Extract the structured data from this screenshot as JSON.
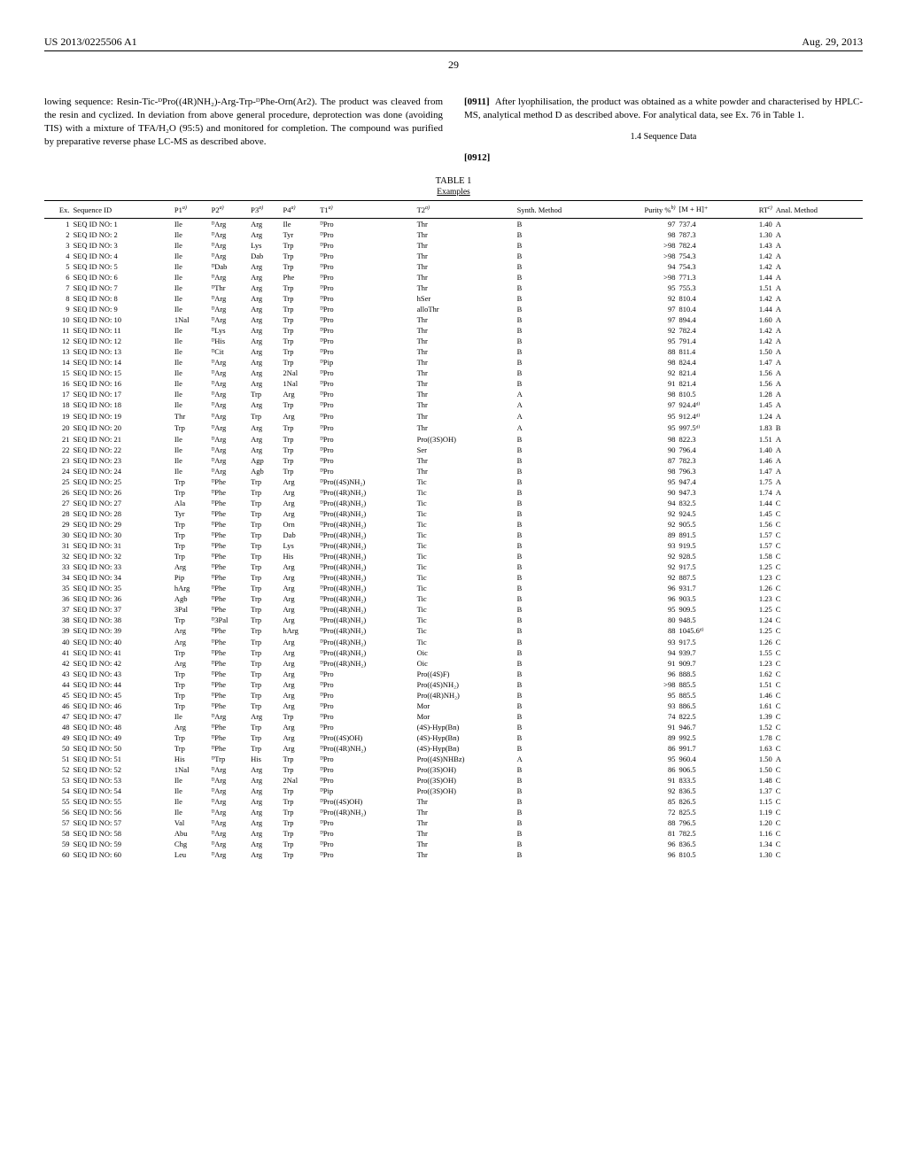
{
  "header": {
    "left": "US 2013/0225506 A1",
    "right": "Aug. 29, 2013"
  },
  "page_number": "29",
  "left_column": {
    "para": "lowing sequence: Resin-Tic-ᴰPro((4R)NH₂)-Arg-Trp-ᴰPhe-Orn(Ar2). The product was cleaved from the resin and cyclized. In deviation from above general procedure, deprotection was done (avoiding TIS) with a mixture of TFA/H₂O (95:5) and monitored for completion. The compound was purified by preparative reverse phase LC-MS as described above."
  },
  "right_column": {
    "para_num": "[0911]",
    "para": "After lyophilisation, the product was obtained as a white powder and characterised by HPLC-MS, analytical method D as described above. For analytical data, see Ex. 76 in Table 1.",
    "subhead": "1.4 Sequence Data",
    "para_num2": "[0912]"
  },
  "table": {
    "label": "TABLE 1",
    "examples_label": "Examples",
    "columns": [
      "Ex.",
      "Sequence ID",
      "P1",
      "P2",
      "P3",
      "P4",
      "T1",
      "T2",
      "Synth. Method",
      "Purity %",
      "[M + H]⁺",
      "RT",
      "Anal. Method"
    ],
    "col_sup": [
      "",
      "",
      "a)",
      "a)",
      "a)",
      "a)",
      "a)",
      "a)",
      "",
      "b)",
      "",
      "c)",
      ""
    ],
    "rows": [
      [
        "1",
        "SEQ ID NO: 1",
        "Ile",
        "ᴰArg",
        "Arg",
        "Ile",
        "ᴰPro",
        "Thr",
        "B",
        "97",
        "737.4",
        "1.40",
        "A"
      ],
      [
        "2",
        "SEQ ID NO: 2",
        "Ile",
        "ᴰArg",
        "Arg",
        "Tyr",
        "ᴰPro",
        "Thr",
        "B",
        "98",
        "787.3",
        "1.30",
        "A"
      ],
      [
        "3",
        "SEQ ID NO: 3",
        "Ile",
        "ᴰArg",
        "Lys",
        "Trp",
        "ᴰPro",
        "Thr",
        "B",
        ">98",
        "782.4",
        "1.43",
        "A"
      ],
      [
        "4",
        "SEQ ID NO: 4",
        "Ile",
        "ᴰArg",
        "Dab",
        "Trp",
        "ᴰPro",
        "Thr",
        "B",
        ">98",
        "754.3",
        "1.42",
        "A"
      ],
      [
        "5",
        "SEQ ID NO: 5",
        "Ile",
        "ᴰDab",
        "Arg",
        "Trp",
        "ᴰPro",
        "Thr",
        "B",
        "94",
        "754.3",
        "1.42",
        "A"
      ],
      [
        "6",
        "SEQ ID NO: 6",
        "Ile",
        "ᴰArg",
        "Arg",
        "Phe",
        "ᴰPro",
        "Thr",
        "B",
        ">98",
        "771.3",
        "1.44",
        "A"
      ],
      [
        "7",
        "SEQ ID NO: 7",
        "Ile",
        "ᴰThr",
        "Arg",
        "Trp",
        "ᴰPro",
        "Thr",
        "B",
        "95",
        "755.3",
        "1.51",
        "A"
      ],
      [
        "8",
        "SEQ ID NO: 8",
        "Ile",
        "ᴰArg",
        "Arg",
        "Trp",
        "ᴰPro",
        "hSer",
        "B",
        "92",
        "810.4",
        "1.42",
        "A"
      ],
      [
        "9",
        "SEQ ID NO: 9",
        "Ile",
        "ᴰArg",
        "Arg",
        "Trp",
        "ᴰPro",
        "alloThr",
        "B",
        "97",
        "810.4",
        "1.44",
        "A"
      ],
      [
        "10",
        "SEQ ID NO: 10",
        "1Nal",
        "ᴰArg",
        "Arg",
        "Trp",
        "ᴰPro",
        "Thr",
        "B",
        "97",
        "894.4",
        "1.60",
        "A"
      ],
      [
        "11",
        "SEQ ID NO: 11",
        "Ile",
        "ᴰLys",
        "Arg",
        "Trp",
        "ᴰPro",
        "Thr",
        "B",
        "92",
        "782.4",
        "1.42",
        "A"
      ],
      [
        "12",
        "SEQ ID NO: 12",
        "Ile",
        "ᴰHis",
        "Arg",
        "Trp",
        "ᴰPro",
        "Thr",
        "B",
        "95",
        "791.4",
        "1.42",
        "A"
      ],
      [
        "13",
        "SEQ ID NO: 13",
        "Ile",
        "ᴰCit",
        "Arg",
        "Trp",
        "ᴰPro",
        "Thr",
        "B",
        "88",
        "811.4",
        "1.50",
        "A"
      ],
      [
        "14",
        "SEQ ID NO: 14",
        "Ile",
        "ᴰArg",
        "Arg",
        "Trp",
        "ᴰPip",
        "Thr",
        "B",
        "98",
        "824.4",
        "1.47",
        "A"
      ],
      [
        "15",
        "SEQ ID NO: 15",
        "Ile",
        "ᴰArg",
        "Arg",
        "2Nal",
        "ᴰPro",
        "Thr",
        "B",
        "92",
        "821.4",
        "1.56",
        "A"
      ],
      [
        "16",
        "SEQ ID NO: 16",
        "Ile",
        "ᴰArg",
        "Arg",
        "1Nal",
        "ᴰPro",
        "Thr",
        "B",
        "91",
        "821.4",
        "1.56",
        "A"
      ],
      [
        "17",
        "SEQ ID NO: 17",
        "Ile",
        "ᴰArg",
        "Trp",
        "Arg",
        "ᴰPro",
        "Thr",
        "A",
        "98",
        "810.5",
        "1.28",
        "A"
      ],
      [
        "18",
        "SEQ ID NO: 18",
        "Ile",
        "ᴰArg",
        "Arg",
        "Trp",
        "ᴰPro",
        "Thr",
        "A",
        "97",
        "924.4ᵈ⁾",
        "1.45",
        "A"
      ],
      [
        "19",
        "SEQ ID NO: 19",
        "Thr",
        "ᴰArg",
        "Trp",
        "Arg",
        "ᴰPro",
        "Thr",
        "A",
        "95",
        "912.4ᵈ⁾",
        "1.24",
        "A"
      ],
      [
        "20",
        "SEQ ID NO: 20",
        "Trp",
        "ᴰArg",
        "Arg",
        "Trp",
        "ᴰPro",
        "Thr",
        "A",
        "95",
        "997.5ᵈ⁾",
        "1.83",
        "B"
      ],
      [
        "21",
        "SEQ ID NO: 21",
        "Ile",
        "ᴰArg",
        "Arg",
        "Trp",
        "ᴰPro",
        "Pro((3S)OH)",
        "B",
        "98",
        "822.3",
        "1.51",
        "A"
      ],
      [
        "22",
        "SEQ ID NO: 22",
        "Ile",
        "ᴰArg",
        "Arg",
        "Trp",
        "ᴰPro",
        "Ser",
        "B",
        "90",
        "796.4",
        "1.40",
        "A"
      ],
      [
        "23",
        "SEQ ID NO: 23",
        "Ile",
        "ᴰArg",
        "Agp",
        "Trp",
        "ᴰPro",
        "Thr",
        "B",
        "87",
        "782.3",
        "1.46",
        "A"
      ],
      [
        "24",
        "SEQ ID NO: 24",
        "Ile",
        "ᴰArg",
        "Agb",
        "Trp",
        "ᴰPro",
        "Thr",
        "B",
        "98",
        "796.3",
        "1.47",
        "A"
      ],
      [
        "25",
        "SEQ ID NO: 25",
        "Trp",
        "ᴰPhe",
        "Trp",
        "Arg",
        "ᴰPro((4S)NH₂)",
        "Tic",
        "B",
        "95",
        "947.4",
        "1.75",
        "A"
      ],
      [
        "26",
        "SEQ ID NO: 26",
        "Trp",
        "ᴰPhe",
        "Trp",
        "Arg",
        "ᴰPro((4R)NH₂)",
        "Tic",
        "B",
        "90",
        "947.3",
        "1.74",
        "A"
      ],
      [
        "27",
        "SEQ ID NO: 27",
        "Ala",
        "ᴰPhe",
        "Trp",
        "Arg",
        "ᴰPro((4R)NH₂)",
        "Tic",
        "B",
        "94",
        "832.5",
        "1.44",
        "C"
      ],
      [
        "28",
        "SEQ ID NO: 28",
        "Tyr",
        "ᴰPhe",
        "Trp",
        "Arg",
        "ᴰPro((4R)NH₂)",
        "Tic",
        "B",
        "92",
        "924.5",
        "1.45",
        "C"
      ],
      [
        "29",
        "SEQ ID NO: 29",
        "Trp",
        "ᴰPhe",
        "Trp",
        "Orn",
        "ᴰPro((4R)NH₂)",
        "Tic",
        "B",
        "92",
        "905.5",
        "1.56",
        "C"
      ],
      [
        "30",
        "SEQ ID NO: 30",
        "Trp",
        "ᴰPhe",
        "Trp",
        "Dab",
        "ᴰPro((4R)NH₂)",
        "Tic",
        "B",
        "89",
        "891.5",
        "1.57",
        "C"
      ],
      [
        "31",
        "SEQ ID NO: 31",
        "Trp",
        "ᴰPhe",
        "Trp",
        "Lys",
        "ᴰPro((4R)NH₂)",
        "Tic",
        "B",
        "93",
        "919.5",
        "1.57",
        "C"
      ],
      [
        "32",
        "SEQ ID NO: 32",
        "Trp",
        "ᴰPhe",
        "Trp",
        "His",
        "ᴰPro((4R)NH₂)",
        "Tic",
        "B",
        "92",
        "928.5",
        "1.58",
        "C"
      ],
      [
        "33",
        "SEQ ID NO: 33",
        "Arg",
        "ᴰPhe",
        "Trp",
        "Arg",
        "ᴰPro((4R)NH₂)",
        "Tic",
        "B",
        "92",
        "917.5",
        "1.25",
        "C"
      ],
      [
        "34",
        "SEQ ID NO: 34",
        "Pip",
        "ᴰPhe",
        "Trp",
        "Arg",
        "ᴰPro((4R)NH₂)",
        "Tic",
        "B",
        "92",
        "887.5",
        "1.23",
        "C"
      ],
      [
        "35",
        "SEQ ID NO: 35",
        "hArg",
        "ᴰPhe",
        "Trp",
        "Arg",
        "ᴰPro((4R)NH₂)",
        "Tic",
        "B",
        "96",
        "931.7",
        "1.26",
        "C"
      ],
      [
        "36",
        "SEQ ID NO: 36",
        "Agb",
        "ᴰPhe",
        "Trp",
        "Arg",
        "ᴰPro((4R)NH₂)",
        "Tic",
        "B",
        "96",
        "903.5",
        "1.23",
        "C"
      ],
      [
        "37",
        "SEQ ID NO: 37",
        "3Pal",
        "ᴰPhe",
        "Trp",
        "Arg",
        "ᴰPro((4R)NH₂)",
        "Tic",
        "B",
        "95",
        "909.5",
        "1.25",
        "C"
      ],
      [
        "38",
        "SEQ ID NO: 38",
        "Trp",
        "ᴰ3Pal",
        "Trp",
        "Arg",
        "ᴰPro((4R)NH₂)",
        "Tic",
        "B",
        "80",
        "948.5",
        "1.24",
        "C"
      ],
      [
        "39",
        "SEQ ID NO: 39",
        "Arg",
        "ᴰPhe",
        "Trp",
        "hArg",
        "ᴰPro((4R)NH₂)",
        "Tic",
        "B",
        "88",
        "1045.6ᵈ⁾",
        "1.25",
        "C"
      ],
      [
        "40",
        "SEQ ID NO: 40",
        "Arg",
        "ᴰPhe",
        "Trp",
        "Arg",
        "ᴰPro((4R)NH₂)",
        "Tic",
        "B",
        "93",
        "917.5",
        "1.26",
        "C"
      ],
      [
        "41",
        "SEQ ID NO: 41",
        "Trp",
        "ᴰPhe",
        "Trp",
        "Arg",
        "ᴰPro((4R)NH₂)",
        "Oic",
        "B",
        "94",
        "939.7",
        "1.55",
        "C"
      ],
      [
        "42",
        "SEQ ID NO: 42",
        "Arg",
        "ᴰPhe",
        "Trp",
        "Arg",
        "ᴰPro((4R)NH₂)",
        "Oic",
        "B",
        "91",
        "909.7",
        "1.23",
        "C"
      ],
      [
        "43",
        "SEQ ID NO: 43",
        "Trp",
        "ᴰPhe",
        "Trp",
        "Arg",
        "ᴰPro",
        "Pro((4S)F)",
        "B",
        "96",
        "888.5",
        "1.62",
        "C"
      ],
      [
        "44",
        "SEQ ID NO: 44",
        "Trp",
        "ᴰPhe",
        "Trp",
        "Arg",
        "ᴰPro",
        "Pro((4S)NH₂)",
        "B",
        ">98",
        "885.5",
        "1.51",
        "C"
      ],
      [
        "45",
        "SEQ ID NO: 45",
        "Trp",
        "ᴰPhe",
        "Trp",
        "Arg",
        "ᴰPro",
        "Pro((4R)NH₂)",
        "B",
        "95",
        "885.5",
        "1.46",
        "C"
      ],
      [
        "46",
        "SEQ ID NO: 46",
        "Trp",
        "ᴰPhe",
        "Trp",
        "Arg",
        "ᴰPro",
        "Mor",
        "B",
        "93",
        "886.5",
        "1.61",
        "C"
      ],
      [
        "47",
        "SEQ ID NO: 47",
        "Ile",
        "ᴰArg",
        "Arg",
        "Trp",
        "ᴰPro",
        "Mor",
        "B",
        "74",
        "822.5",
        "1.39",
        "C"
      ],
      [
        "48",
        "SEQ ID NO: 48",
        "Arg",
        "ᴰPhe",
        "Trp",
        "Arg",
        "ᴰPro",
        "(4S)-Hyp(Bn)",
        "B",
        "91",
        "946.7",
        "1.52",
        "C"
      ],
      [
        "49",
        "SEQ ID NO: 49",
        "Trp",
        "ᴰPhe",
        "Trp",
        "Arg",
        "ᴰPro((4S)OH)",
        "(4S)-Hyp(Bn)",
        "B",
        "89",
        "992.5",
        "1.78",
        "C"
      ],
      [
        "50",
        "SEQ ID NO: 50",
        "Trp",
        "ᴰPhe",
        "Trp",
        "Arg",
        "ᴰPro((4R)NH₂)",
        "(4S)-Hyp(Bn)",
        "B",
        "86",
        "991.7",
        "1.63",
        "C"
      ],
      [
        "51",
        "SEQ ID NO: 51",
        "His",
        "ᴰTrp",
        "His",
        "Trp",
        "ᴰPro",
        "Pro((4S)NHBz)",
        "A",
        "95",
        "960.4",
        "1.50",
        "A"
      ],
      [
        "52",
        "SEQ ID NO: 52",
        "1Nal",
        "ᴰArg",
        "Arg",
        "Trp",
        "ᴰPro",
        "Pro((3S)OH)",
        "B",
        "86",
        "906.5",
        "1.50",
        "C"
      ],
      [
        "53",
        "SEQ ID NO: 53",
        "Ile",
        "ᴰArg",
        "Arg",
        "2Nal",
        "ᴰPro",
        "Pro((3S)OH)",
        "B",
        "91",
        "833.5",
        "1.48",
        "C"
      ],
      [
        "54",
        "SEQ ID NO: 54",
        "Ile",
        "ᴰArg",
        "Arg",
        "Trp",
        "ᴰPip",
        "Pro((3S)OH)",
        "B",
        "92",
        "836.5",
        "1.37",
        "C"
      ],
      [
        "55",
        "SEQ ID NO: 55",
        "Ile",
        "ᴰArg",
        "Arg",
        "Trp",
        "ᴰPro((4S)OH)",
        "Thr",
        "B",
        "85",
        "826.5",
        "1.15",
        "C"
      ],
      [
        "56",
        "SEQ ID NO: 56",
        "Ile",
        "ᴰArg",
        "Arg",
        "Trp",
        "ᴰPro((4R)NH₂)",
        "Thr",
        "B",
        "72",
        "825.5",
        "1.19",
        "C"
      ],
      [
        "57",
        "SEQ ID NO: 57",
        "Val",
        "ᴰArg",
        "Arg",
        "Trp",
        "ᴰPro",
        "Thr",
        "B",
        "88",
        "796.5",
        "1.20",
        "C"
      ],
      [
        "58",
        "SEQ ID NO: 58",
        "Abu",
        "ᴰArg",
        "Arg",
        "Trp",
        "ᴰPro",
        "Thr",
        "B",
        "81",
        "782.5",
        "1.16",
        "C"
      ],
      [
        "59",
        "SEQ ID NO: 59",
        "Chg",
        "ᴰArg",
        "Arg",
        "Trp",
        "ᴰPro",
        "Thr",
        "B",
        "96",
        "836.5",
        "1.34",
        "C"
      ],
      [
        "60",
        "SEQ ID NO: 60",
        "Leu",
        "ᴰArg",
        "Arg",
        "Trp",
        "ᴰPro",
        "Thr",
        "B",
        "96",
        "810.5",
        "1.30",
        "C"
      ]
    ]
  }
}
